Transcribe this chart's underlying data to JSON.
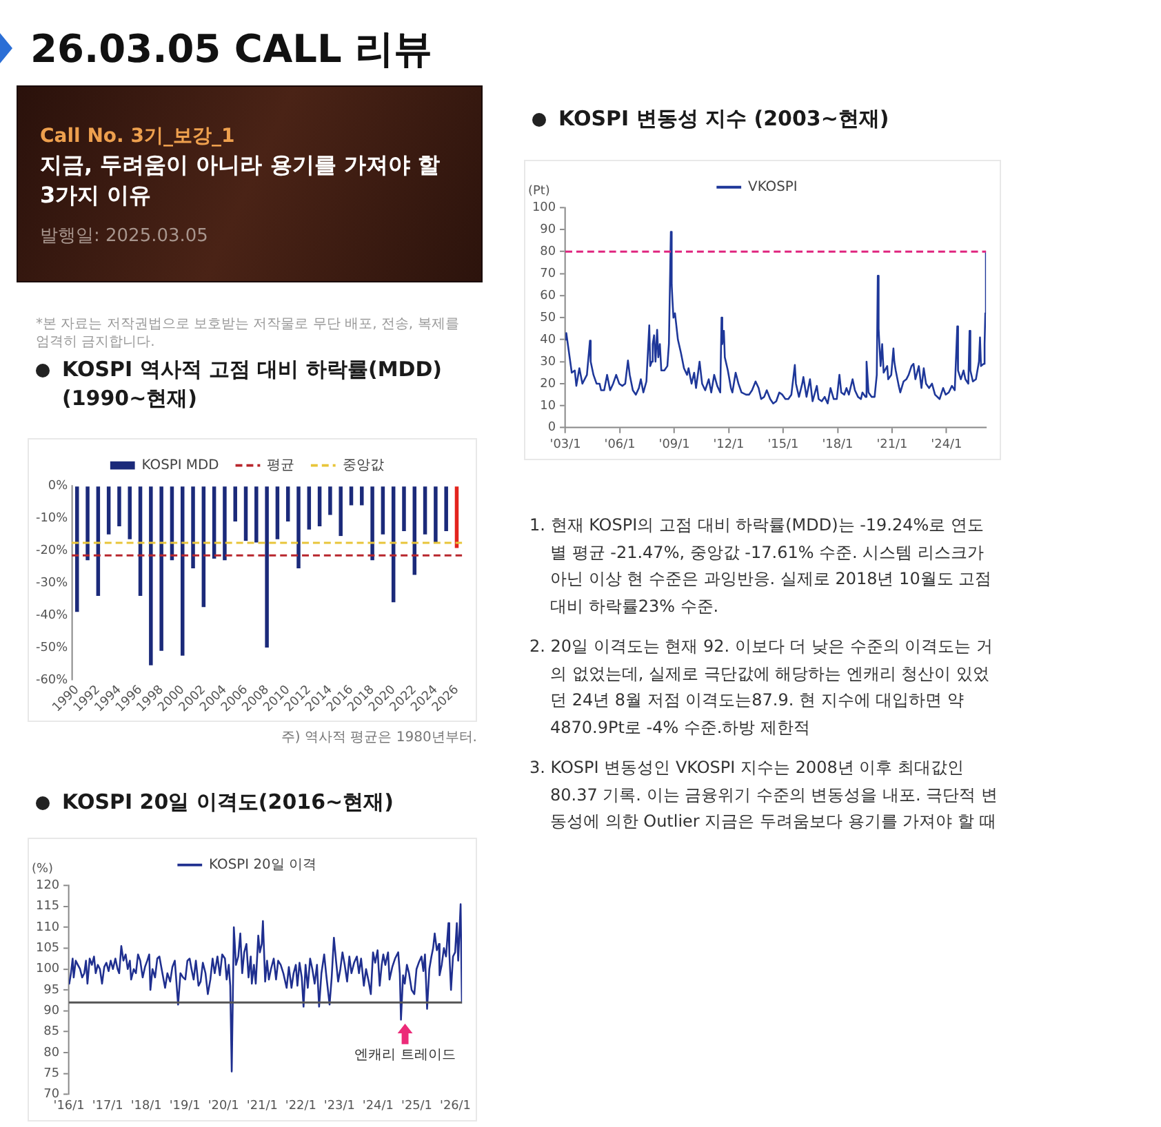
{
  "chart_data": [
    {
      "type": "other",
      "title": "26.03.05 CALL 리뷰"
    },
    {
      "type": "other",
      "subtitle": "Call No. 3기_보강_1",
      "title": "지금, 두려움이 아니라 용기를 가져야 할 3가지 이유",
      "annotations": [
        "발행일: 2025.03.05",
        "*본 자료는 저작권법으로 보호받는 저작물로 무단 배포, 전송, 복제를 엄격히 금지합니다."
      ]
    },
    {
      "type": "bar",
      "title": "KOSPI 역사적 고점 대비 하락률(MDD) (1990~현재)",
      "categories": [
        "1990",
        null,
        "1992",
        null,
        "1994",
        null,
        "1996",
        null,
        "1998",
        null,
        "2000",
        null,
        "2002",
        null,
        "2004",
        null,
        "2006",
        null,
        "2008",
        null,
        "2010",
        null,
        "2012",
        null,
        "2014",
        null,
        "2016",
        null,
        "2018",
        null,
        "2020",
        null,
        "2022",
        null,
        "2024",
        null,
        "2026"
      ],
      "series": [
        {
          "name": "KOSPI MDD",
          "color": "#1b2a7a",
          "colors": [
            "#1b2a7a",
            "#1b2a7a",
            "#1b2a7a",
            "#1b2a7a",
            "#1b2a7a",
            "#1b2a7a",
            "#1b2a7a",
            "#1b2a7a",
            "#1b2a7a",
            "#1b2a7a",
            "#1b2a7a",
            "#1b2a7a",
            "#1b2a7a",
            "#1b2a7a",
            "#1b2a7a",
            "#1b2a7a",
            "#1b2a7a",
            "#1b2a7a",
            "#1b2a7a",
            "#1b2a7a",
            "#1b2a7a",
            "#1b2a7a",
            "#1b2a7a",
            "#1b2a7a",
            "#1b2a7a",
            "#1b2a7a",
            "#1b2a7a",
            "#1b2a7a",
            "#1b2a7a",
            "#1b2a7a",
            "#1b2a7a",
            "#1b2a7a",
            "#1b2a7a",
            "#1b2a7a",
            "#1b2a7a",
            "#1b2a7a",
            "#e3241d"
          ],
          "values": [
            -39,
            -23,
            -34,
            -15,
            -12.5,
            -16.5,
            -34,
            -55.5,
            -51,
            -23,
            -52.5,
            -25.5,
            -37.5,
            -22.5,
            -23,
            -11,
            -17,
            -17.5,
            -50,
            -16.5,
            -11,
            -25.5,
            -13.5,
            -12.5,
            -9,
            -15.5,
            -6,
            -6,
            -23,
            -15,
            -36,
            -14,
            -27.5,
            -15,
            -17.5,
            -14,
            -19.2
          ]
        }
      ],
      "ylim": [
        -60,
        0
      ],
      "yticks": [
        {
          "value": 0,
          "label": "0%"
        },
        {
          "value": -10,
          "label": "-10%"
        },
        {
          "value": -20,
          "label": "-20%"
        },
        {
          "value": -30,
          "label": "-30%"
        },
        {
          "value": -40,
          "label": "-40%"
        },
        {
          "value": -50,
          "label": "-50%"
        },
        {
          "value": -60,
          "label": "-60%"
        }
      ],
      "ref_lines": [
        {
          "axis": "y",
          "value": -21.5,
          "label": "평균",
          "color": "#b8262c",
          "line_style": "dashed"
        },
        {
          "axis": "y",
          "value": -17.6,
          "label": "중앙값",
          "color": "#e8c53a",
          "line_style": "dashed"
        }
      ],
      "legend": "top",
      "annotations": [
        "주) 역사적 평균은 1980년부터."
      ]
    },
    {
      "type": "line",
      "title": "KOSPI 20일 이격도(2016~현재)",
      "ylabel": "(%)",
      "x": [
        "2016-01-04",
        "2016-01-20",
        "2016-02-05",
        "2016-02-15",
        "2016-03-05",
        "2016-03-25",
        "2016-04-15",
        "2016-05-05",
        "2016-05-25",
        "2016-06-10",
        "2016-06-24",
        "2016-07-15",
        "2016-08-05",
        "2016-08-25",
        "2016-09-10",
        "2016-09-30",
        "2016-10-20",
        "2016-11-09",
        "2016-11-30",
        "2016-12-20",
        "2017-01-10",
        "2017-01-30",
        "2017-02-20",
        "2017-03-15",
        "2017-04-05",
        "2017-04-20",
        "2017-05-10",
        "2017-05-30",
        "2017-06-20",
        "2017-07-10",
        "2017-07-30",
        "2017-08-11",
        "2017-09-05",
        "2017-09-25",
        "2017-10-15",
        "2017-11-05",
        "2017-11-28",
        "2017-12-20",
        "2018-01-10",
        "2018-01-29",
        "2018-02-09",
        "2018-03-01",
        "2018-03-25",
        "2018-04-15",
        "2018-05-05",
        "2018-05-30",
        "2018-06-28",
        "2018-07-20",
        "2018-08-15",
        "2018-09-05",
        "2018-09-28",
        "2018-10-29",
        "2018-11-20",
        "2018-12-15",
        "2019-01-05",
        "2019-01-25",
        "2019-02-15",
        "2019-03-05",
        "2019-03-25",
        "2019-04-15",
        "2019-05-10",
        "2019-05-30",
        "2019-06-20",
        "2019-07-15",
        "2019-08-06",
        "2019-08-30",
        "2019-09-20",
        "2019-10-10",
        "2019-11-05",
        "2019-11-28",
        "2019-12-20",
        "2020-01-15",
        "2020-01-31",
        "2020-02-20",
        "2020-03-05",
        "2020-03-19",
        "2020-04-08",
        "2020-04-28",
        "2020-05-20",
        "2020-06-08",
        "2020-06-26",
        "2020-07-15",
        "2020-08-05",
        "2020-08-25",
        "2020-09-15",
        "2020-09-25",
        "2020-10-15",
        "2020-11-01",
        "2020-11-25",
        "2020-12-10",
        "2020-12-28",
        "2021-01-08",
        "2021-01-29",
        "2021-02-16",
        "2021-03-05",
        "2021-03-25",
        "2021-04-20",
        "2021-05-12",
        "2021-06-01",
        "2021-06-25",
        "2021-07-20",
        "2021-08-20",
        "2021-09-10",
        "2021-10-05",
        "2021-10-25",
        "2021-11-15",
        "2021-11-30",
        "2021-12-20",
        "2022-01-10",
        "2022-01-27",
        "2022-02-15",
        "2022-03-08",
        "2022-03-30",
        "2022-04-20",
        "2022-05-12",
        "2022-06-03",
        "2022-06-23",
        "2022-07-15",
        "2022-08-10",
        "2022-08-30",
        "2022-09-30",
        "2022-10-20",
        "2022-11-10",
        "2022-11-30",
        "2022-12-20",
        "2023-01-10",
        "2023-01-30",
        "2023-02-20",
        "2023-03-15",
        "2023-04-05",
        "2023-04-25",
        "2023-05-20",
        "2023-06-15",
        "2023-07-05",
        "2023-07-25",
        "2023-08-20",
        "2023-09-10",
        "2023-10-05",
        "2023-10-25",
        "2023-11-15",
        "2023-12-05",
        "2023-12-28",
        "2024-01-17",
        "2024-02-05",
        "2024-02-20",
        "2024-03-10",
        "2024-04-05",
        "2024-04-19",
        "2024-05-15",
        "2024-06-10",
        "2024-07-10",
        "2024-07-25",
        "2024-08-05",
        "2024-08-25",
        "2024-09-10",
        "2024-09-30",
        "2024-10-20",
        "2024-11-14",
        "2024-12-09",
        "2024-12-30",
        "2025-01-20",
        "2025-02-15",
        "2025-03-05",
        "2025-03-20",
        "2025-04-09",
        "2025-04-30",
        "2025-05-20",
        "2025-06-05",
        "2025-06-20",
        "2025-07-10",
        "2025-07-30",
        "2025-08-05",
        "2025-08-25",
        "2025-09-15",
        "2025-10-05",
        "2025-10-28",
        "2025-11-05",
        "2025-11-21",
        "2025-12-10",
        "2025-12-30",
        "2026-01-15",
        "2026-01-28",
        "2026-02-20",
        "2026-03-04"
      ],
      "series": [
        {
          "name": "KOSPI 20일 이격",
          "color": "#1f2f8f",
          "values": [
            96.5,
            99,
            102.5,
            98,
            102,
            101,
            100,
            98,
            99,
            102,
            96.5,
            102.5,
            101,
            103,
            99,
            101,
            100,
            96.5,
            100.5,
            101.5,
            99.5,
            102,
            100,
            102.5,
            100,
            99,
            105.5,
            102,
            103.5,
            100,
            102,
            97.5,
            100,
            99,
            103.5,
            102,
            98,
            100.5,
            102,
            103.5,
            95,
            100,
            98,
            102.5,
            103,
            99.5,
            95.5,
            99,
            97,
            100.5,
            102,
            91.5,
            99,
            98,
            97.5,
            102,
            102.5,
            100,
            97.5,
            102,
            96,
            97,
            101.5,
            99,
            94,
            97.5,
            102.5,
            99,
            103,
            98.5,
            103.5,
            102.5,
            97.5,
            101,
            96,
            75.5,
            110,
            101,
            103,
            108.5,
            99,
            104,
            106,
            98,
            103,
            96.5,
            101,
            96.5,
            108,
            104,
            106,
            111.5,
            97,
            102,
            97.5,
            100,
            102.5,
            97.5,
            102,
            101,
            99,
            95.5,
            100.5,
            95.5,
            99,
            101,
            96,
            101.5,
            98,
            91,
            101,
            95.5,
            102.5,
            100,
            96.5,
            101,
            91,
            99,
            103.5,
            98.5,
            91.5,
            98,
            107.5,
            102,
            97,
            100,
            104,
            101,
            97,
            103,
            99,
            101.5,
            103,
            99,
            102.5,
            96,
            100,
            97,
            94,
            104,
            101.5,
            104.5,
            96,
            101,
            103.5,
            101,
            104,
            97.5,
            100.5,
            102.5,
            104,
            99,
            87.9,
            98.5,
            96.5,
            101,
            99,
            95,
            94,
            100,
            101.5,
            103,
            99.5,
            103.5,
            90.5,
            100,
            103,
            105,
            108.5,
            104.5,
            106,
            98.5,
            101,
            105,
            103,
            111,
            104,
            95,
            103,
            104,
            111,
            102,
            115.5,
            92
          ]
        }
      ],
      "xlim": [
        "2016-01-01",
        "2026-03-05"
      ],
      "xticks": [
        {
          "value": "2016-01",
          "label": "'16/1"
        },
        {
          "value": "2017-01",
          "label": "'17/1"
        },
        {
          "value": "2018-01",
          "label": "'18/1"
        },
        {
          "value": "2019-01",
          "label": "'19/1"
        },
        {
          "value": "2020-01",
          "label": "'20/1"
        },
        {
          "value": "2021-01",
          "label": "'21/1"
        },
        {
          "value": "2022-01",
          "label": "'22/1"
        },
        {
          "value": "2023-01",
          "label": "'23/1"
        },
        {
          "value": "2024-01",
          "label": "'24/1"
        },
        {
          "value": "2025-01",
          "label": "'25/1"
        },
        {
          "value": "2026-01",
          "label": "'26/1"
        }
      ],
      "ylim": [
        70,
        120
      ],
      "yticks": [
        70,
        75,
        80,
        85,
        90,
        95,
        100,
        105,
        110,
        115,
        120
      ],
      "ref_lines": [
        {
          "axis": "y",
          "value": 92,
          "color": "#555555"
        }
      ],
      "legend": "top",
      "annotations": [
        {
          "text": "엔캐리 트레이드",
          "x": "2024-08-05",
          "y": 87.9
        }
      ]
    },
    {
      "type": "line",
      "title": "KOSPI 변동성 지수 (2003~현재)",
      "ylabel": "(Pt)",
      "x": [
        "2003-01-02",
        "2003-01-20",
        "2003-03-10",
        "2003-05-10",
        "2003-07-10",
        "2003-08-10",
        "2003-10-10",
        "2003-12-10",
        "2004-03-10",
        "2004-05-10",
        "2004-05-25",
        "2004-07-20",
        "2004-09-20",
        "2004-11-20",
        "2004-12-20",
        "2005-02-20",
        "2005-04-20",
        "2005-06-20",
        "2005-08-20",
        "2005-10-20",
        "2005-12-20",
        "2006-02-20",
        "2006-04-20",
        "2006-06-14",
        "2006-07-20",
        "2006-09-20",
        "2006-11-20",
        "2007-01-20",
        "2007-02-28",
        "2007-04-20",
        "2007-06-20",
        "2007-08-17",
        "2007-09-05",
        "2007-10-05",
        "2007-10-25",
        "2007-11-22",
        "2007-12-20",
        "2008-01-22",
        "2008-02-15",
        "2008-03-17",
        "2008-04-15",
        "2008-06-15",
        "2008-08-15",
        "2008-09-15",
        "2008-10-24",
        "2008-11-10",
        "2008-11-25",
        "2008-12-15",
        "2009-01-15",
        "2009-03-15",
        "2009-05-15",
        "2009-07-15",
        "2009-09-15",
        "2009-10-15",
        "2009-12-15",
        "2010-02-05",
        "2010-03-15",
        "2010-05-25",
        "2010-07-15",
        "2010-09-15",
        "2010-11-25",
        "2011-01-15",
        "2011-03-15",
        "2011-05-15",
        "2011-07-15",
        "2011-08-10",
        "2011-08-25",
        "2011-09-26",
        "2011-10-15",
        "2011-12-15",
        "2012-02-15",
        "2012-03-15",
        "2012-05-20",
        "2012-07-15",
        "2012-09-15",
        "2012-12-15",
        "2013-02-15",
        "2013-04-15",
        "2013-06-25",
        "2013-08-25",
        "2013-10-15",
        "2013-12-15",
        "2014-02-05",
        "2014-04-15",
        "2014-06-15",
        "2014-08-15",
        "2014-10-15",
        "2014-12-15",
        "2015-02-15",
        "2015-04-15",
        "2015-06-15",
        "2015-08-24",
        "2015-09-15",
        "2015-11-15",
        "2016-01-20",
        "2016-02-12",
        "2016-04-15",
        "2016-06-24",
        "2016-08-15",
        "2016-11-09",
        "2016-12-15",
        "2017-02-15",
        "2017-04-15",
        "2017-06-15",
        "2017-08-11",
        "2017-10-15",
        "2017-12-15",
        "2018-02-06",
        "2018-03-15",
        "2018-05-15",
        "2018-06-28",
        "2018-08-15",
        "2018-10-29",
        "2018-12-15",
        "2019-02-15",
        "2019-04-15",
        "2019-05-15",
        "2019-07-15",
        "2019-08-06",
        "2019-09-15",
        "2019-11-15",
        "2020-01-15",
        "2020-02-28",
        "2020-03-19",
        "2020-04-05",
        "2020-04-20",
        "2020-05-15",
        "2020-06-15",
        "2020-07-15",
        "2020-09-25",
        "2020-10-15",
        "2020-12-15",
        "2021-01-28",
        "2021-02-15",
        "2021-03-15",
        "2021-05-15",
        "2021-06-15",
        "2021-08-20",
        "2021-10-15",
        "2021-11-30",
        "2022-01-27",
        "2022-03-08",
        "2022-04-15",
        "2022-06-23",
        "2022-08-15",
        "2022-09-30",
        "2022-11-15",
        "2023-01-15",
        "2023-03-15",
        "2023-05-15",
        "2023-08-15",
        "2023-10-25",
        "2023-12-15",
        "2024-02-15",
        "2024-04-19",
        "2024-06-15",
        "2024-08-05",
        "2024-08-20",
        "2024-10-15",
        "2024-12-09",
        "2025-01-15",
        "2025-03-15",
        "2025-04-09",
        "2025-04-25",
        "2025-06-15",
        "2025-08-15",
        "2025-10-15",
        "2025-11-05",
        "2025-11-25",
        "2026-01-15",
        "2026-02-05",
        "2026-02-20",
        "2026-03-04"
      ],
      "series": [
        {
          "name": "VKOSPI",
          "color": "#1e3799",
          "values": [
            40,
            43,
            35,
            25,
            26,
            19,
            27,
            20,
            24,
            39.5,
            30,
            24,
            20,
            20,
            17,
            17,
            24,
            17,
            20,
            24,
            20,
            19,
            20,
            30.5,
            24,
            17,
            15,
            18,
            22,
            16,
            21,
            46.5,
            28,
            30,
            38,
            42,
            30,
            44.5,
            32,
            38,
            26,
            26,
            28,
            38,
            89,
            65,
            58,
            50,
            52,
            40,
            34,
            27,
            24,
            27,
            20,
            25,
            18,
            30,
            20,
            17,
            22,
            16,
            24,
            19,
            16,
            50,
            38,
            44,
            32,
            26,
            18,
            16,
            25,
            20,
            16,
            15,
            15,
            17,
            21,
            18,
            13,
            14,
            17,
            13,
            11,
            12,
            16,
            15,
            13,
            13,
            15,
            28.5,
            20,
            14,
            20,
            23,
            14,
            22,
            12,
            19,
            13,
            12,
            14,
            11,
            18,
            13,
            13,
            24,
            16,
            15,
            18,
            15,
            22,
            17,
            14,
            13,
            16,
            14,
            30,
            16,
            14,
            14,
            24,
            69,
            45,
            38,
            28,
            38,
            25,
            28,
            22,
            24,
            36,
            30,
            26,
            19,
            16,
            21,
            22,
            24,
            28,
            29,
            22,
            28,
            18,
            27,
            20,
            18,
            20,
            15,
            13,
            18,
            15,
            16,
            19,
            17,
            46,
            26,
            22,
            26,
            22,
            20,
            44,
            26,
            21,
            22,
            30,
            41,
            28,
            29,
            38,
            52,
            80
          ]
        }
      ],
      "xlim": [
        "2003-01-01",
        "2026-03-05"
      ],
      "xticks": [
        {
          "value": "2003-01",
          "label": "'03/1"
        },
        {
          "value": "2006-01",
          "label": "'06/1"
        },
        {
          "value": "2009-01",
          "label": "'09/1"
        },
        {
          "value": "2012-01",
          "label": "'12/1"
        },
        {
          "value": "2015-01",
          "label": "'15/1"
        },
        {
          "value": "2018-01",
          "label": "'18/1"
        },
        {
          "value": "2021-01",
          "label": "'21/1"
        },
        {
          "value": "2024-01",
          "label": "'24/1"
        }
      ],
      "ylim": [
        0,
        100
      ],
      "yticks": [
        0,
        10,
        20,
        30,
        40,
        50,
        60,
        70,
        80,
        90,
        100
      ],
      "ref_lines": [
        {
          "axis": "y",
          "value": 80,
          "color": "#e0257f",
          "line_style": "dashed"
        }
      ],
      "legend": "top"
    },
    {
      "type": "other",
      "annotations": [
        "1. 현재 KOSPI의 고점 대비 하락률(MDD)는 -19.24%로 연도별 평균 -21.47%, 중앙값 -17.61% 수준. 시스템 리스크가 아닌 이상 현 수준은 과잉반응. 실제로 2018년 10월도 고점 대비 하락률23% 수준.",
        "2. 20일 이격도는 현재 92. 이보다 더 낮은 수준의 이격도는 거의 없었는데, 실제로 극단값에 해당하는 엔캐리 청산이 있었던 24년 8월 저점 이격도는87.9. 현 지수에 대입하면 약 4870.9Pt로 -4% 수준.하방 제한적",
        "3. KOSPI 변동성인 VKOSPI 지수는 2008년 이후 최대값인 80.37 기록. 이는 금융위기 수준의 변동성을 내포. 극단적 변동성에 의한 Outlier 지금은 두려움보다 용기를 가져야 할 때"
      ]
    }
  ]
}
